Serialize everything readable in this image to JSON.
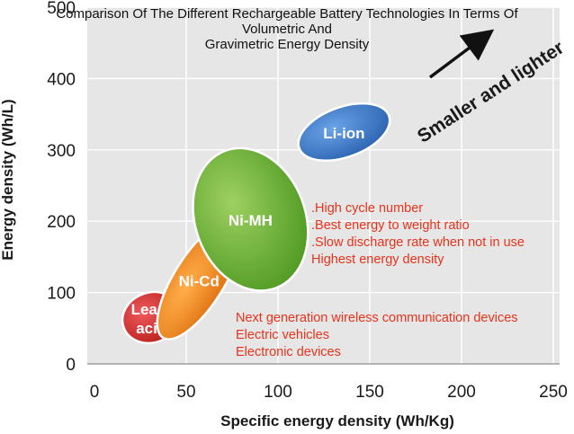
{
  "title_lines": [
    "Comparison Of The Different Rechargeable Battery Technologies In Terms Of",
    "Volumetric And",
    "Gravimetric Energy Density"
  ],
  "colors": {
    "plot_bg": "#e6e6e6",
    "lead_acid": "#d42a2a",
    "ni_cd": "#f28a1c",
    "ni_mh": "#6fb43a",
    "li_ion": "#3a78c9",
    "note_text": "#e8331b"
  },
  "chart_data": {
    "type": "scatter",
    "xlabel": "Specific energy density (Wh/Kg)",
    "ylabel": "Energy density (Wh/L)",
    "xlim": [
      0,
      250
    ],
    "ylim": [
      0,
      500
    ],
    "x_ticks": [
      "0",
      "50",
      "100",
      "150",
      "200",
      "250"
    ],
    "y_ticks": [
      "0",
      "100",
      "200",
      "300",
      "400",
      "500"
    ],
    "grid": true,
    "regions": [
      {
        "name": "Lead-acid",
        "label_lines": [
          "Lead-",
          "acid"
        ],
        "x_range": [
          15,
          47
        ],
        "y_range": [
          30,
          100
        ],
        "color": "#d42a2a"
      },
      {
        "name": "Ni-Cd",
        "label_lines": [
          "Ni-Cd"
        ],
        "x_range": [
          37,
          77
        ],
        "y_range": [
          35,
          200
        ],
        "color": "#f28a1c"
      },
      {
        "name": "Ni-MH",
        "label_lines": [
          "Ni-MH"
        ],
        "x_range": [
          55,
          115
        ],
        "y_range": [
          100,
          305
        ],
        "color": "#6fb43a"
      },
      {
        "name": "Li-ion",
        "label_lines": [
          "Li-ion"
        ],
        "x_range": [
          110,
          162
        ],
        "y_range": [
          290,
          360
        ],
        "color": "#3a78c9"
      }
    ],
    "annotation": "Smaller and lighter"
  },
  "notes": {
    "li_ion_features": [
      ".High cycle number",
      ".Best energy to weight ratio",
      ".Slow discharge rate when not in use",
      "Highest energy density"
    ],
    "applications": [
      "Next generation wireless communication devices",
      "Electric vehicles",
      "Electronic devices"
    ]
  }
}
